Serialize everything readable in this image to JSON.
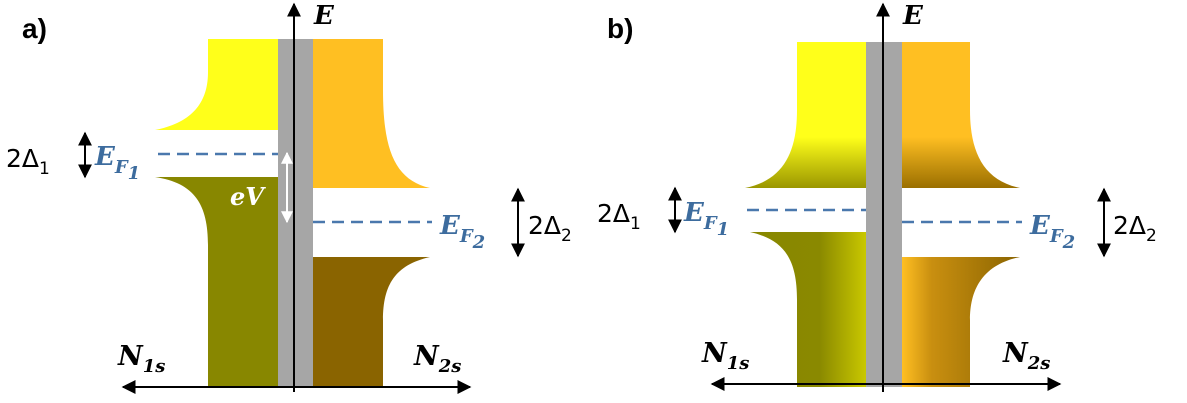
{
  "panels": [
    {
      "id": "a",
      "label": "a)",
      "energy_axis": "E",
      "fermi_left": {
        "main": "E",
        "sub": "F",
        "sub2": "1"
      },
      "fermi_right": {
        "main": "E",
        "sub": "F",
        "sub2": "2"
      },
      "gap_left": {
        "main": "2Δ",
        "sub": "1"
      },
      "gap_right": {
        "main": "2Δ",
        "sub": "2"
      },
      "dos_left": {
        "main": "N",
        "sub": "1s"
      },
      "dos_right": {
        "main": "N",
        "sub": "2s"
      },
      "bias": "eV"
    },
    {
      "id": "b",
      "label": "b)",
      "energy_axis": "E",
      "fermi_left": {
        "main": "E",
        "sub": "F",
        "sub2": "1"
      },
      "fermi_right": {
        "main": "E",
        "sub": "F",
        "sub2": "2"
      },
      "gap_left": {
        "main": "2Δ",
        "sub": "1"
      },
      "gap_right": {
        "main": "2Δ",
        "sub": "2"
      },
      "dos_left": {
        "main": "N",
        "sub": "1s"
      },
      "dos_right": {
        "main": "N",
        "sub": "2s"
      }
    }
  ],
  "colors": {
    "empty_left": "#ffff1a",
    "empty_right": "#ffbf22",
    "filled_left": "#888700",
    "filled_right": "#8a6400",
    "barrier": "#a6a6a6",
    "fermi_line": "#4a78ad"
  }
}
